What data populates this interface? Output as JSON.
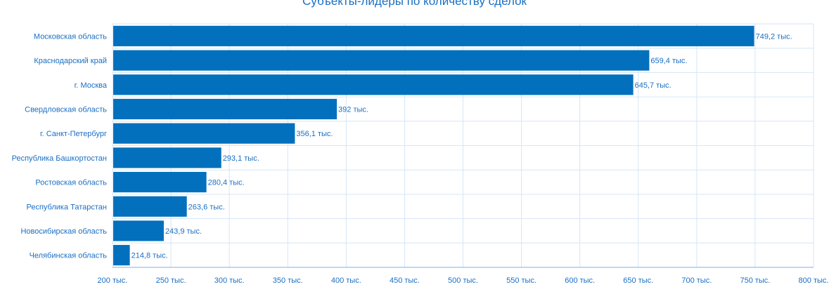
{
  "chart_data": {
    "type": "bar",
    "orientation": "horizontal",
    "title": "Субъекты-лидеры по количеству сделок",
    "categories": [
      "Московская область",
      "Краснодарский край",
      "г. Москва",
      "Свердловская область",
      "г. Санкт-Петербург",
      "Республика Башкортостан",
      "Ростовская область",
      "Республика Татарстан",
      "Новосибирская область",
      "Челябинская область"
    ],
    "values": [
      749.2,
      659.4,
      645.7,
      392,
      356.1,
      293.1,
      280.4,
      263.6,
      243.9,
      214.8
    ],
    "data_labels": [
      "749,2 тыс.",
      "659,4 тыс.",
      "645,7 тыс.",
      "392 тыс.",
      "356,1 тыс.",
      "293,1 тыс.",
      "280,4 тыс.",
      "263,6 тыс.",
      "243,9 тыс.",
      "214,8 тыс."
    ],
    "x_ticks": [
      200,
      250,
      300,
      350,
      400,
      450,
      500,
      550,
      600,
      650,
      700,
      750,
      800
    ],
    "x_tick_labels": [
      "200 тыс.",
      "250 тыс.",
      "300 тыс.",
      "350 тыс.",
      "400 тыс.",
      "450 тыс.",
      "500 тыс.",
      "550 тыс.",
      "600 тыс.",
      "650 тыс.",
      "700 тыс.",
      "750 тыс.",
      "800 тыс."
    ],
    "xlim": [
      200,
      800
    ],
    "grid": true,
    "colors": {
      "bar": "#0270bd",
      "grid": "#d6e6f5",
      "text": "#1a6fc4",
      "axis": "#7fb0e0"
    }
  }
}
